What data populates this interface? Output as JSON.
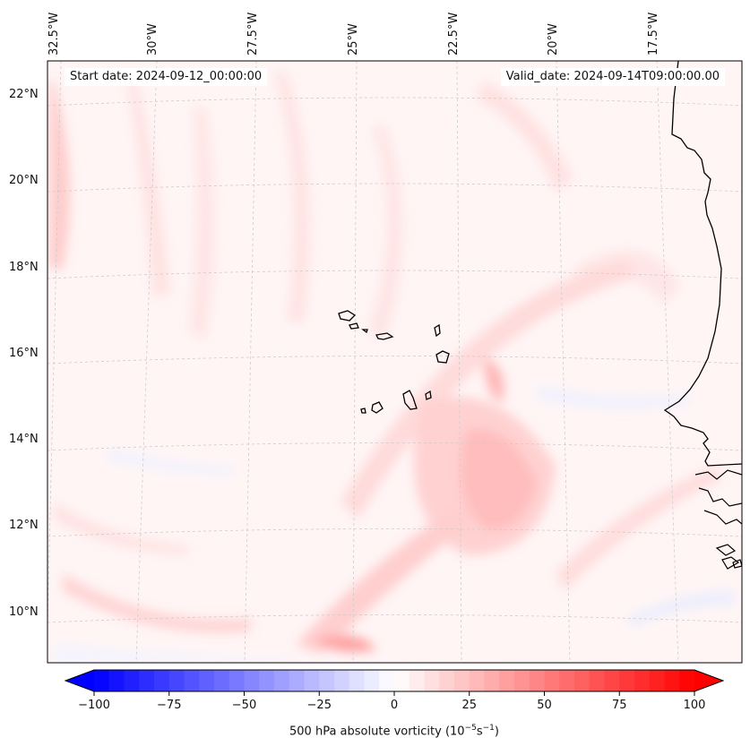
{
  "map": {
    "start_date": "Start date: 2024-09-12_00:00:00",
    "valid_date": "Valid_date: 2024-09-14T09:00:00.00",
    "longitude_labels": [
      "32.5°W",
      "30°W",
      "27.5°W",
      "25°W",
      "22.5°W",
      "20°W",
      "17.5°W"
    ],
    "latitude_labels": [
      "22°N",
      "20°N",
      "18°N",
      "16°N",
      "14°N",
      "12°N",
      "10°N"
    ]
  },
  "colorbar": {
    "ticks": [
      "−100",
      "−75",
      "−50",
      "−25",
      "0",
      "25",
      "50",
      "75",
      "100"
    ],
    "label_prefix": "500 hPa absolute vorticity (10",
    "label_exp1": "−5",
    "label_mid": "s",
    "label_exp2": "−1",
    "label_suffix": ")",
    "min": -100,
    "max": 100,
    "colors": {
      "negative": "#0000ff",
      "zero": "#ffffff",
      "positive": "#ff0000"
    }
  }
}
